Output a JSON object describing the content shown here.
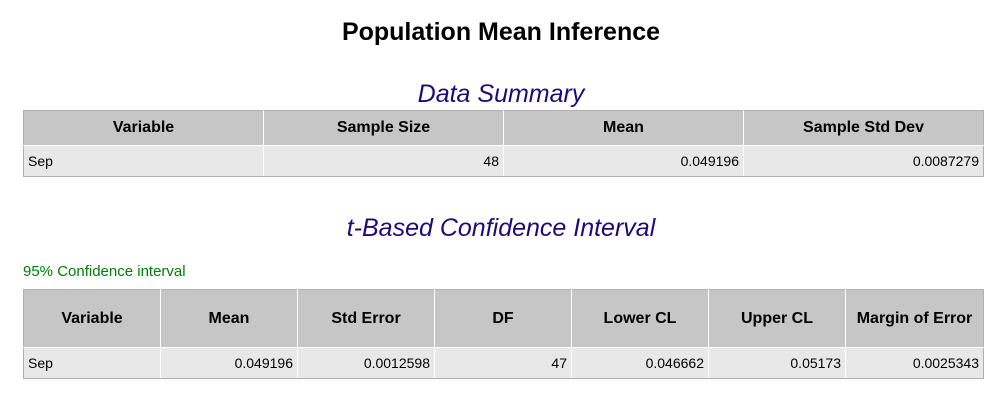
{
  "page_title": "Population Mean Inference",
  "summary": {
    "title": "Data Summary",
    "columns": [
      "Variable",
      "Sample Size",
      "Mean",
      "Sample Std Dev"
    ],
    "rows": [
      [
        "Sep",
        "48",
        "0.049196",
        "0.0087279"
      ]
    ]
  },
  "ci": {
    "title": "t-Based Confidence Interval",
    "note": "95% Confidence interval",
    "columns": [
      "Variable",
      "Mean",
      "Std Error",
      "DF",
      "Lower CL",
      "Upper CL",
      "Margin of Error"
    ],
    "rows": [
      [
        "Sep",
        "0.049196",
        "0.0012598",
        "47",
        "0.046662",
        "0.05173",
        "0.0025343"
      ]
    ]
  },
  "colors": {
    "section_title": "#1f0a7a",
    "note": "#008000",
    "header_bg": "#c6c6c6",
    "cell_bg": "#e8e8e8"
  }
}
